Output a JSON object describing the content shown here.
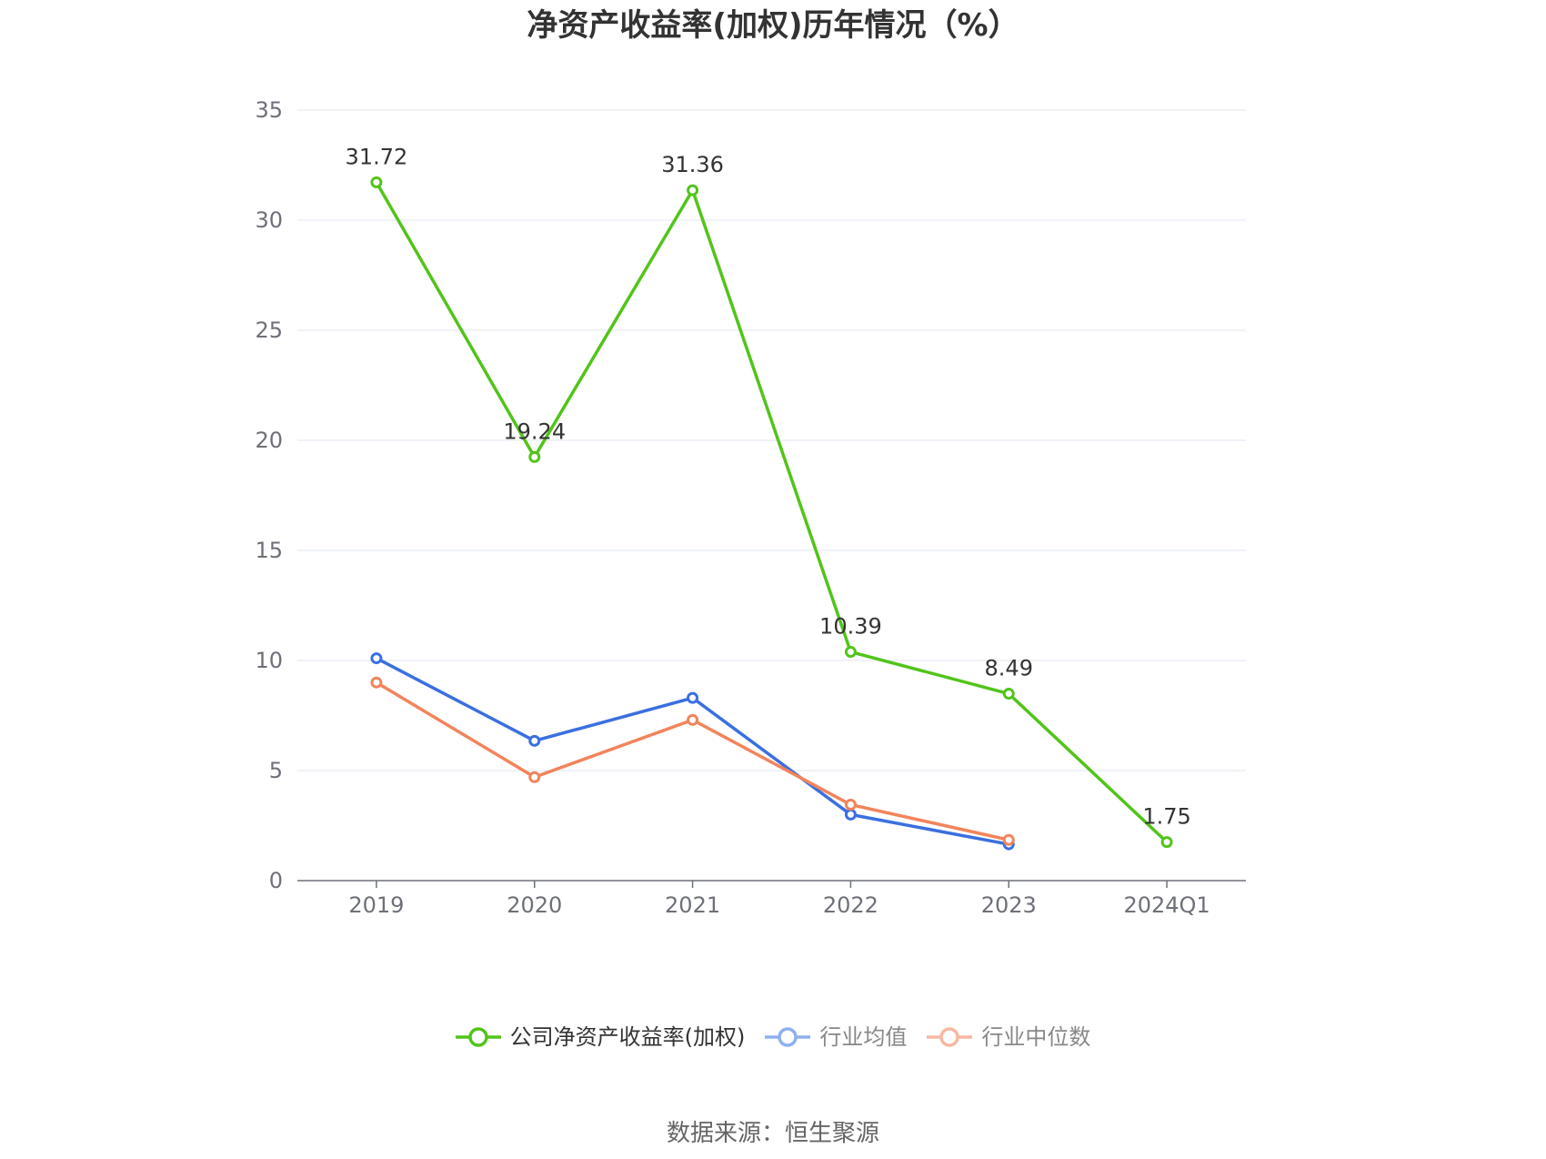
{
  "chart_data": {
    "type": "line",
    "title": "净资产收益率(加权)历年情况（%）",
    "categories": [
      "2019",
      "2020",
      "2021",
      "2022",
      "2023",
      "2024Q1"
    ],
    "series": [
      {
        "name": "公司净资产收益率(加权)",
        "color": "#52c41a",
        "values": [
          31.72,
          19.24,
          31.36,
          10.39,
          8.49,
          1.75
        ],
        "labels": [
          "31.72",
          "19.24",
          "31.36",
          "10.39",
          "8.49",
          "1.75"
        ],
        "show_labels": true
      },
      {
        "name": "行业均值",
        "color": "#3a6fe0",
        "values": [
          10.1,
          6.35,
          8.3,
          3.0,
          1.65,
          null
        ],
        "show_labels": false
      },
      {
        "name": "行业中位数",
        "color": "#f2845c",
        "values": [
          9.0,
          4.7,
          7.3,
          3.45,
          1.85,
          null
        ],
        "show_labels": false
      }
    ],
    "ylim": [
      0,
      35
    ],
    "yticks": [
      "0",
      "5",
      "10",
      "15",
      "20",
      "25",
      "30",
      "35"
    ],
    "grid": true,
    "legend_position": "bottom"
  },
  "legend": {
    "items": [
      {
        "label": "公司净资产收益率(加权)",
        "color": "#52c41a",
        "text_color": "#333333"
      },
      {
        "label": "行业均值",
        "color": "#8fb0ee",
        "text_color": "#888888"
      },
      {
        "label": "行业中位数",
        "color": "#f6b8a1",
        "text_color": "#888888"
      }
    ]
  },
  "source": "数据来源：恒生聚源"
}
